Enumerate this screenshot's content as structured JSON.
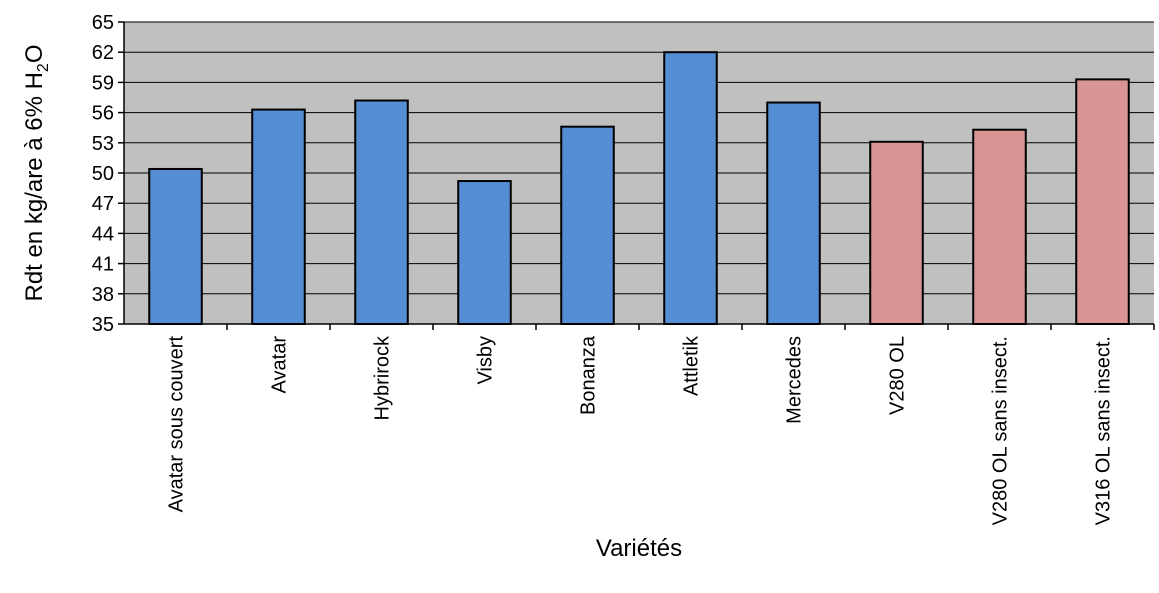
{
  "chart_data": {
    "type": "bar",
    "categories": [
      "Avatar sous couvert",
      "Avatar",
      "Hybrirock",
      "Visby",
      "Bonanza",
      "Attletik",
      "Mercedes",
      "V280 OL",
      "V280 OL sans insect.",
      "V316 OL sans insect."
    ],
    "values": [
      50.4,
      56.3,
      57.2,
      49.2,
      54.6,
      62.0,
      57.0,
      53.1,
      54.3,
      59.3
    ],
    "bar_colors": [
      "#558ed5",
      "#558ed5",
      "#558ed5",
      "#558ed5",
      "#558ed5",
      "#558ed5",
      "#558ed5",
      "#d99594",
      "#d99594",
      "#d99594"
    ],
    "title": "",
    "xlabel": "Variétés",
    "ylabel_prefix": "Rdt en kg/are à 6% H",
    "ylabel_sub": "2",
    "ylabel_suffix": "O",
    "ylim": [
      35,
      65
    ],
    "yticks": [
      "35",
      "38",
      "41",
      "44",
      "47",
      "50",
      "53",
      "56",
      "59",
      "62",
      "65"
    ],
    "grid": true,
    "plot_background": "#c0c0c0",
    "legend": "none"
  }
}
